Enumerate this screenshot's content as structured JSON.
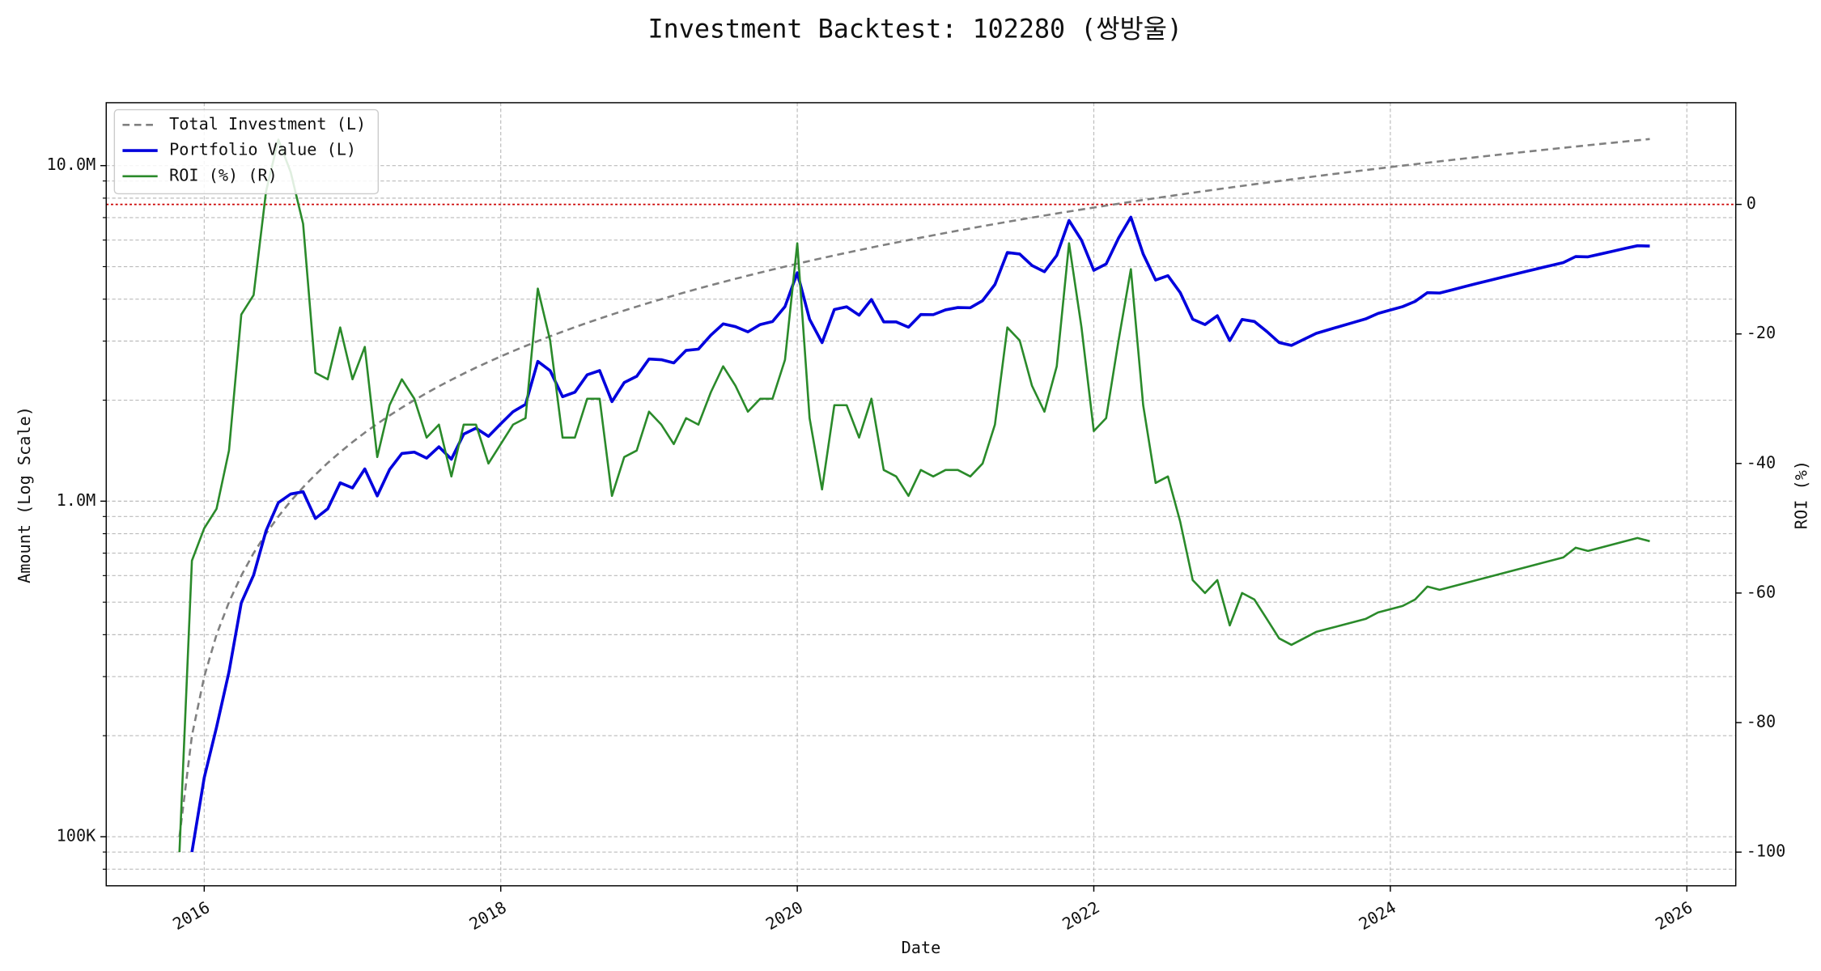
{
  "chart_data": {
    "type": "line",
    "title": "Investment Backtest: 102280 (쌍방울)",
    "xlabel": "Date",
    "ylabel": "Amount (Log Scale)",
    "y2label": "ROI (%)",
    "yscale": "log",
    "grid": true,
    "legend": "upper left",
    "xlim": [
      2015.339,
      2026.33
    ],
    "xticks": [
      2016,
      2018,
      2020,
      2022,
      2024,
      2026
    ],
    "ylim": [
      71400,
      15400000
    ],
    "yticks": [
      {
        "value": 100000,
        "label": "100K"
      },
      {
        "value": 1000000,
        "label": "1.0M"
      },
      {
        "value": 10000000,
        "label": "10.0M"
      }
    ],
    "yminorticks": [
      80000,
      90000,
      200000,
      300000,
      400000,
      500000,
      600000,
      700000,
      800000,
      900000,
      2000000,
      3000000,
      4000000,
      5000000,
      6000000,
      7000000,
      8000000,
      9000000
    ],
    "y2lim": [
      -105.2,
      15.7
    ],
    "y2ticks": [
      0,
      -20,
      -40,
      -60,
      -80,
      -100
    ],
    "reference_lines": [
      {
        "axis": "y2",
        "value": 0,
        "color": "#cc0000"
      }
    ],
    "x": [
      2015.833,
      2015.917,
      2016,
      2016.083,
      2016.167,
      2016.25,
      2016.333,
      2016.417,
      2016.5,
      2016.583,
      2016.667,
      2016.75,
      2016.833,
      2016.917,
      2017,
      2017.083,
      2017.167,
      2017.25,
      2017.333,
      2017.417,
      2017.5,
      2017.583,
      2017.667,
      2017.75,
      2017.833,
      2017.917,
      2018,
      2018.083,
      2018.167,
      2018.25,
      2018.333,
      2018.417,
      2018.5,
      2018.583,
      2018.667,
      2018.75,
      2018.833,
      2018.917,
      2019,
      2019.083,
      2019.167,
      2019.25,
      2019.333,
      2019.417,
      2019.5,
      2019.583,
      2019.667,
      2019.75,
      2019.833,
      2019.917,
      2020,
      2020.083,
      2020.167,
      2020.25,
      2020.333,
      2020.417,
      2020.5,
      2020.583,
      2020.667,
      2020.75,
      2020.833,
      2020.917,
      2021,
      2021.083,
      2021.167,
      2021.25,
      2021.333,
      2021.417,
      2021.5,
      2021.583,
      2021.667,
      2021.75,
      2021.833,
      2021.917,
      2022,
      2022.083,
      2022.167,
      2022.25,
      2022.333,
      2022.417,
      2022.5,
      2022.583,
      2022.667,
      2022.75,
      2022.833,
      2022.917,
      2023,
      2023.083,
      2023.167,
      2023.25,
      2023.333,
      2023.417,
      2023.5,
      2023.583,
      2023.667,
      2023.75,
      2023.833,
      2023.917,
      2024,
      2024.083,
      2024.167,
      2024.25,
      2024.333,
      2024.417,
      2024.5,
      2024.583,
      2024.667,
      2024.75,
      2024.833,
      2024.917,
      2025,
      2025.083,
      2025.167,
      2025.25,
      2025.333,
      2025.417,
      2025.5,
      2025.583,
      2025.667,
      2025.75
    ],
    "series": [
      {
        "name": "Total Investment (L)",
        "color": "#808080",
        "linestyle": "dashed",
        "axis": "y",
        "values": [
          100000,
          200000,
          300000,
          400000,
          500000,
          600000,
          700000,
          800000,
          900000,
          1000000,
          1100000,
          1200000,
          1300000,
          1400000,
          1500000,
          1600000,
          1700000,
          1800000,
          1900000,
          2000000,
          2100000,
          2200000,
          2300000,
          2400000,
          2500000,
          2600000,
          2700000,
          2800000,
          2900000,
          3000000,
          3100000,
          3200000,
          3300000,
          3400000,
          3500000,
          3600000,
          3700000,
          3800000,
          3900000,
          4000000,
          4100000,
          4200000,
          4300000,
          4400000,
          4500000,
          4600000,
          4700000,
          4800000,
          4900000,
          5000000,
          5100000,
          5200000,
          5300000,
          5400000,
          5500000,
          5600000,
          5700000,
          5800000,
          5900000,
          6000000,
          6100000,
          6200000,
          6300000,
          6400000,
          6500000,
          6600000,
          6700000,
          6800000,
          6900000,
          7000000,
          7100000,
          7200000,
          7300000,
          7400000,
          7500000,
          7600000,
          7700000,
          7800000,
          7900000,
          8000000,
          8100000,
          8200000,
          8300000,
          8400000,
          8500000,
          8600000,
          8700000,
          8800000,
          8900000,
          9000000,
          9100000,
          9200000,
          9300000,
          9400000,
          9500000,
          9600000,
          9700000,
          9800000,
          9900000,
          10000000,
          10100000,
          10200000,
          10300000,
          10400000,
          10500000,
          10600000,
          10700000,
          10800000,
          10900000,
          11000000,
          11100000,
          11200000,
          11300000,
          11400000,
          11500000,
          11600000,
          11700000,
          11800000,
          11900000,
          12000000
        ]
      },
      {
        "name": "Portfolio Value (L)",
        "color": "#0000dd",
        "linestyle": "solid",
        "axis": "y",
        "values": [
          null,
          90000,
          150000,
          212000,
          310000,
          498000,
          602000,
          816000,
          990000,
          1050000,
          1067000,
          888000,
          949000,
          1134000,
          1095000,
          1248000,
          1037000,
          1242000,
          1387000,
          1400000,
          1344000,
          1452000,
          1334000,
          1584000,
          1650000,
          1560000,
          1701000,
          1848000,
          1943000,
          2610000,
          2449000,
          2048000,
          2112000,
          2380000,
          2450000,
          1980000,
          2257000,
          2356000,
          2652000,
          2640000,
          2583000,
          2814000,
          2838000,
          3124000,
          3375000,
          3312000,
          3196000,
          3360000,
          3430000,
          3800000,
          4794000,
          3484000,
          2968000,
          3726000,
          3795000,
          3584000,
          3990000,
          3422000,
          3422000,
          3300000,
          3599000,
          3596000,
          3717000,
          3776000,
          3770000,
          3960000,
          4422000,
          5508000,
          5451000,
          5040000,
          4828000,
          5400000,
          6862000,
          5994000,
          4875000,
          5092000,
          6083000,
          7020000,
          5451000,
          4560000,
          4698000,
          4182000,
          3486000,
          3360000,
          3570000,
          3010000,
          3480000,
          3432000,
          3204000,
          2970000,
          2912000,
          3036000,
          3162000,
          3243000,
          3325000,
          3408000,
          3492000,
          3626000,
          3712500,
          3800000,
          3939000,
          4182000,
          4171500,
          4264000,
          4357500,
          4452000,
          4547500,
          4644000,
          4741500,
          4840000,
          4939500,
          5040000,
          5141500,
          5358000,
          5347500,
          5452000,
          5557500,
          5664000,
          5771500,
          5760000
        ]
      },
      {
        "name": "ROI (%) (R)",
        "color": "#2a8a2a",
        "linestyle": "solid",
        "axis": "y2",
        "values": [
          -100,
          -55,
          -50,
          -47,
          -38,
          -17,
          -14,
          2,
          10,
          5,
          -3,
          -26,
          -27,
          -19,
          -27,
          -22,
          -39,
          -31,
          -27,
          -30,
          -36,
          -34,
          -42,
          -34,
          -34,
          -40,
          -37,
          -34,
          -33,
          -13,
          -21,
          -36,
          -36,
          -30,
          -30,
          -45,
          -39,
          -38,
          -32,
          -34,
          -37,
          -33,
          -34,
          -29,
          -25,
          -28,
          -32,
          -30,
          -30,
          -24,
          -6,
          -33,
          -44,
          -31,
          -31,
          -36,
          -30,
          -41,
          -42,
          -45,
          -41,
          -42,
          -41,
          -41,
          -42,
          -40,
          -34,
          -19,
          -21,
          -28,
          -32,
          -25,
          -6,
          -19,
          -35,
          -33,
          -21,
          -10,
          -31,
          -43,
          -42,
          -49,
          -58,
          -60,
          -58,
          -65,
          -60,
          -61,
          -64,
          -67,
          -68,
          -67,
          -66,
          -65.5,
          -65,
          -64.5,
          -64,
          -63,
          -62.5,
          -62,
          -61,
          -59,
          -59.5,
          -59,
          -58.5,
          -58,
          -57.5,
          -57,
          -56.5,
          -56,
          -55.5,
          -55,
          -54.5,
          -53,
          -53.5,
          -53,
          -52.5,
          -52,
          -51.5,
          -52
        ]
      }
    ]
  }
}
